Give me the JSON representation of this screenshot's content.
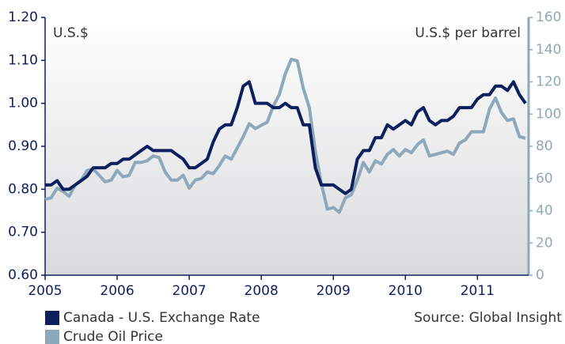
{
  "chart_data": {
    "type": "line",
    "y_label": "U.S.$",
    "y2_label": "U.S.$ per barrel",
    "source": "Source: Global Insight",
    "legend": "bottom-left",
    "xlim": [
      2005,
      2011.71
    ],
    "xticks": [
      2005,
      2006,
      2007,
      2008,
      2009,
      2010,
      2011
    ],
    "ylim": [
      0.6,
      1.2
    ],
    "yticks": [
      {
        "value": 0.6,
        "label": "0.60"
      },
      {
        "value": 0.7,
        "label": "0.70"
      },
      {
        "value": 0.8,
        "label": "0.80"
      },
      {
        "value": 0.9,
        "label": "0.90"
      },
      {
        "value": 1.0,
        "label": "1.00"
      },
      {
        "value": 1.1,
        "label": "1.10"
      },
      {
        "value": 1.2,
        "label": "1.20"
      }
    ],
    "y2lim": [
      0,
      160
    ],
    "y2ticks": [
      0,
      20,
      40,
      60,
      80,
      100,
      120,
      140,
      160
    ],
    "x": [
      2005,
      2005.083,
      2005.167,
      2005.25,
      2005.333,
      2005.417,
      2005.5,
      2005.583,
      2005.667,
      2005.75,
      2005.833,
      2005.917,
      2006,
      2006.083,
      2006.167,
      2006.25,
      2006.333,
      2006.417,
      2006.5,
      2006.583,
      2006.667,
      2006.75,
      2006.833,
      2006.917,
      2007,
      2007.083,
      2007.167,
      2007.25,
      2007.333,
      2007.417,
      2007.5,
      2007.583,
      2007.667,
      2007.75,
      2007.833,
      2007.917,
      2008,
      2008.083,
      2008.167,
      2008.25,
      2008.333,
      2008.417,
      2008.5,
      2008.583,
      2008.667,
      2008.75,
      2008.833,
      2008.917,
      2009,
      2009.083,
      2009.167,
      2009.25,
      2009.333,
      2009.417,
      2009.5,
      2009.583,
      2009.667,
      2009.75,
      2009.833,
      2009.917,
      2010,
      2010.083,
      2010.167,
      2010.25,
      2010.333,
      2010.417,
      2010.5,
      2010.583,
      2010.667,
      2010.75,
      2010.833,
      2010.917,
      2011,
      2011.083,
      2011.167,
      2011.25,
      2011.333,
      2011.417,
      2011.5,
      2011.583,
      2011.667
    ],
    "series": [
      {
        "name": "Canada - U.S. Exchange Rate",
        "color": "#0e1f5e",
        "axis": "y",
        "values": [
          0.81,
          0.81,
          0.82,
          0.8,
          0.8,
          0.81,
          0.82,
          0.83,
          0.85,
          0.85,
          0.85,
          0.86,
          0.86,
          0.87,
          0.87,
          0.88,
          0.89,
          0.9,
          0.89,
          0.89,
          0.89,
          0.89,
          0.88,
          0.87,
          0.85,
          0.85,
          0.86,
          0.87,
          0.91,
          0.94,
          0.95,
          0.95,
          0.99,
          1.04,
          1.05,
          1.0,
          1.0,
          1.0,
          0.99,
          0.99,
          1.0,
          0.99,
          0.99,
          0.95,
          0.95,
          0.85,
          0.81,
          0.81,
          0.81,
          0.8,
          0.79,
          0.8,
          0.87,
          0.89,
          0.89,
          0.92,
          0.92,
          0.95,
          0.94,
          0.95,
          0.96,
          0.95,
          0.98,
          0.99,
          0.96,
          0.95,
          0.96,
          0.96,
          0.97,
          0.99,
          0.99,
          0.99,
          1.01,
          1.02,
          1.02,
          1.04,
          1.04,
          1.03,
          1.05,
          1.02,
          1.0
        ]
      },
      {
        "name": "Crude Oil Price",
        "color": "#8ea8bb",
        "axis": "y2",
        "values": [
          47,
          48,
          54,
          52,
          49,
          56,
          59,
          65,
          66,
          62,
          58,
          59,
          65,
          61,
          62,
          70,
          70,
          71,
          74,
          73,
          64,
          59,
          59,
          62,
          54,
          59,
          60,
          64,
          63,
          68,
          74,
          72,
          79,
          86,
          94,
          91,
          93,
          95,
          105,
          112,
          125,
          134,
          133,
          116,
          104,
          77,
          57,
          41,
          42,
          39,
          48,
          50,
          59,
          70,
          64,
          71,
          69,
          75,
          78,
          74,
          78,
          76,
          81,
          84,
          74,
          75,
          76,
          77,
          75,
          82,
          84,
          89,
          89,
          89,
          103,
          110,
          101,
          96,
          97,
          86,
          85
        ]
      }
    ]
  }
}
